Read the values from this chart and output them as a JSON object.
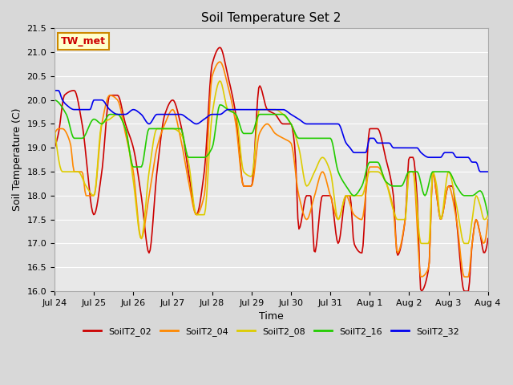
{
  "title": "Soil Temperature Set 2",
  "xlabel": "Time",
  "ylabel": "Soil Temperature (C)",
  "ylim": [
    16.0,
    21.5
  ],
  "annotation_text": "TW_met",
  "annotation_color": "#cc0000",
  "annotation_bg": "#ffffcc",
  "annotation_border": "#cc8800",
  "fig_bg": "#d8d8d8",
  "plot_bg": "#e8e8e8",
  "series_colors": {
    "SoilT2_02": "#cc0000",
    "SoilT2_04": "#ff8800",
    "SoilT2_08": "#ddcc00",
    "SoilT2_16": "#22cc00",
    "SoilT2_32": "#0000ee"
  },
  "xticks_labels": [
    "Jul 24",
    "Jul 25",
    "Jul 26",
    "Jul 27",
    "Jul 28",
    "Jul 29",
    "Jul 30",
    "Jul 31",
    "Aug 1",
    "Aug 2",
    "Aug 3",
    "Aug 4"
  ]
}
